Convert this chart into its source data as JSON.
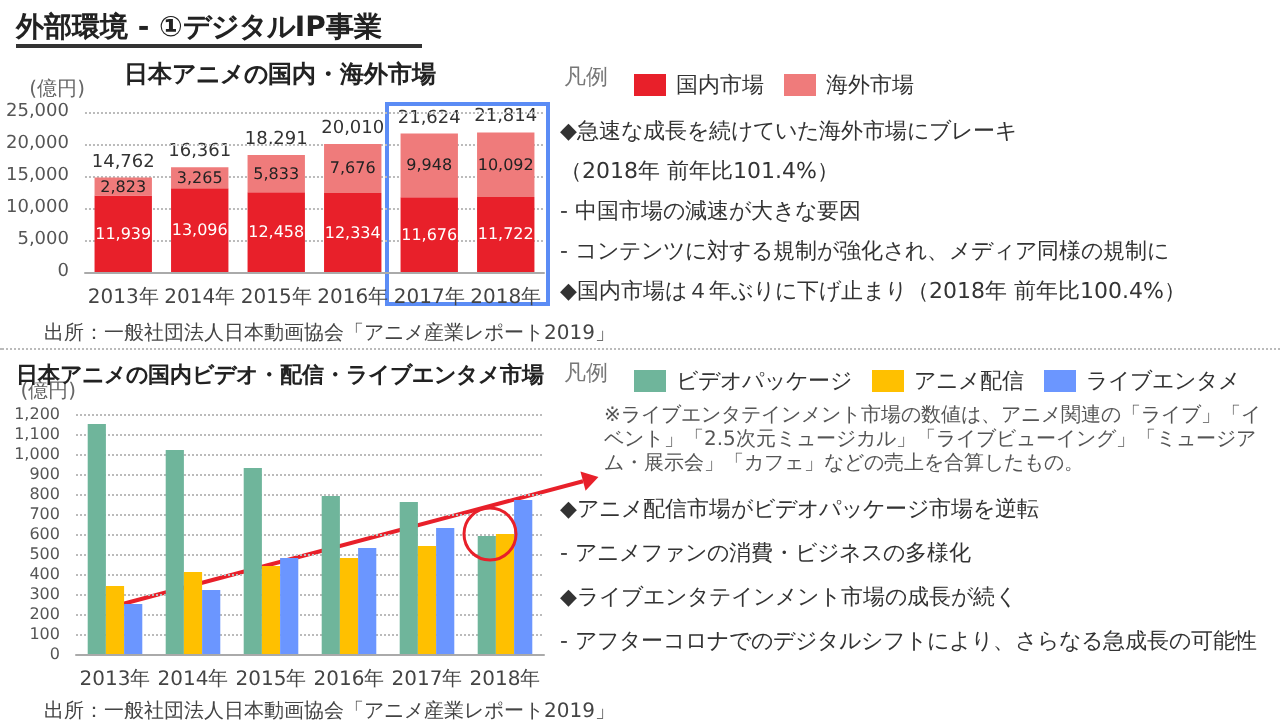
{
  "chart_data": [
    {
      "type": "bar",
      "title": "日本アニメの国内・海外市場",
      "ylabel": "(億円)",
      "legend_title": "凡例",
      "legend": "right",
      "stacked": true,
      "grid": "y",
      "categories": [
        "2013年",
        "2014年",
        "2015年",
        "2016年",
        "2017年",
        "2018年"
      ],
      "series": [
        {
          "name": "国内市場",
          "color": "#e8202a",
          "values": [
            11939,
            13096,
            12458,
            12334,
            11676,
            11722
          ],
          "value_labels": [
            "11,939",
            "13,096",
            "12,458",
            "12,334",
            "11,676",
            "11,722"
          ]
        },
        {
          "name": "海外市場",
          "color": "#ef7b7b",
          "values": [
            2823,
            3265,
            5833,
            7676,
            9948,
            10092
          ],
          "value_labels": [
            "2,823",
            "3,265",
            "5,833",
            "7,676",
            "9,948",
            "10,092"
          ]
        }
      ],
      "totals": [
        "14,762",
        "16,361",
        "18,291",
        "20,010",
        "21,624",
        "21,814"
      ],
      "ylim": [
        0,
        25000
      ],
      "yticks": [
        0,
        {
          "value": 5000,
          "label": "5,000"
        },
        {
          "value": 10000,
          "label": "10,000"
        },
        {
          "value": 15000,
          "label": "15,000"
        },
        {
          "value": 20000,
          "label": "20,000"
        },
        {
          "value": 25000,
          "label": "25,000"
        }
      ],
      "annotations": [
        "外部環境 - ①デジタルIP事業",
        "◆急速な成長を続けていた海外市場にブレーキ",
        "（2018年 前年比101.4%）",
        "- 中国市場の減速が大きな要因",
        "- コンテンツに対する規制が強化され、メディア同様の規制に",
        "◆国内市場は４年ぶりに下げ止まり（2018年 前年比100.4%）",
        "出所：一般社団法人日本動画協会「アニメ産業レポート2019」"
      ]
    },
    {
      "type": "bar",
      "title": "日本アニメの国内ビデオ・配信・ライブエンタメ市場",
      "ylabel": "(億円)",
      "legend_title": "凡例",
      "legend": "right",
      "grid": "y",
      "categories": [
        "2013年",
        "2014年",
        "2015年",
        "2016年",
        "2017年",
        "2018年"
      ],
      "series": [
        {
          "name": "ビデオパッケージ",
          "color": "#6fb59b",
          "values": [
            1150,
            1020,
            930,
            790,
            760,
            590
          ]
        },
        {
          "name": "アニメ配信",
          "color": "#ffc000",
          "values": [
            340,
            410,
            440,
            480,
            540,
            600
          ]
        },
        {
          "name": "ライブエンタメ",
          "color": "#6b96ff",
          "values": [
            250,
            320,
            480,
            530,
            630,
            770
          ]
        }
      ],
      "ylim": [
        0,
        1200
      ],
      "yticks": [
        0,
        100,
        200,
        300,
        400,
        500,
        600,
        700,
        800,
        900,
        {
          "value": 1000,
          "label": "1,000"
        },
        {
          "value": 1100,
          "label": "1,100"
        },
        {
          "value": 1200,
          "label": "1,200"
        }
      ],
      "annotations": [
        "※ライブエンタテインメント市場の数値は、アニメ関連の「ライブ」「イベント」「2.5次元ミュージカル」「ライブビューイング」「ミュージアム・展示会」「カフェ」などの売上を合算したもの。",
        "◆アニメ配信市場がビデオパッケージ市場を逆転",
        "- アニメファンの消費・ビジネスの多様化",
        "◆ライブエンタテインメント市場の成長が続く",
        "- アフターコロナでのデジタルシフトにより、さらなる急成長の可能性",
        "出所：一般社団法人日本動画協会「アニメ産業レポート2019」"
      ]
    }
  ]
}
